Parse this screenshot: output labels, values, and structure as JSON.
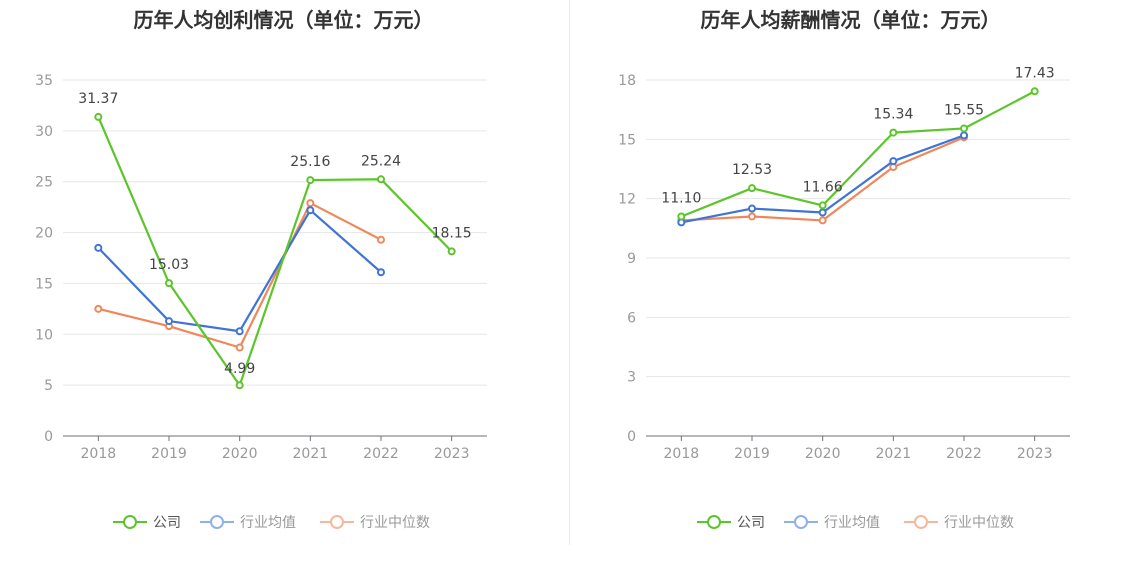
{
  "legend": [
    {
      "label": "公司",
      "color": "#5bc52a",
      "dim": false
    },
    {
      "label": "行业均值",
      "color": "#3e74d6",
      "dim": true
    },
    {
      "label": "行业中位数",
      "color": "#f0875a",
      "dim": true
    }
  ],
  "chart_data": [
    {
      "type": "line",
      "title": "历年人均创利情况（单位：万元）",
      "categories": [
        "2018",
        "2019",
        "2020",
        "2021",
        "2022",
        "2023"
      ],
      "ylim": [
        0,
        35
      ],
      "yticks": [
        0,
        5,
        10,
        15,
        20,
        25,
        30,
        35
      ],
      "grid": true,
      "legend_position": "bottom",
      "series": [
        {
          "name": "公司",
          "color": "#5bc52a",
          "values": [
            31.37,
            15.03,
            4.99,
            25.16,
            25.24,
            18.15
          ],
          "labels": [
            "31.37",
            "15.03",
            "4.99",
            "25.16",
            "25.24",
            "18.15"
          ]
        },
        {
          "name": "行业均值",
          "color": "#3e74d6",
          "values": [
            18.5,
            11.3,
            10.3,
            22.2,
            16.1,
            null
          ]
        },
        {
          "name": "行业中位数",
          "color": "#f0875a",
          "values": [
            12.5,
            10.8,
            8.7,
            22.9,
            19.3,
            null
          ]
        }
      ]
    },
    {
      "type": "line",
      "title": "历年人均薪酬情况（单位：万元）",
      "categories": [
        "2018",
        "2019",
        "2020",
        "2021",
        "2022",
        "2023"
      ],
      "ylim": [
        0,
        18
      ],
      "yticks": [
        0,
        3,
        6,
        9,
        12,
        15,
        18
      ],
      "grid": true,
      "legend_position": "bottom",
      "series": [
        {
          "name": "公司",
          "color": "#5bc52a",
          "values": [
            11.1,
            12.53,
            11.66,
            15.34,
            15.55,
            17.43
          ],
          "labels": [
            "11.10",
            "12.53",
            "11.66",
            "15.34",
            "15.55",
            "17.43"
          ]
        },
        {
          "name": "行业均值",
          "color": "#3e74d6",
          "values": [
            10.8,
            11.5,
            11.3,
            13.9,
            15.2,
            null
          ]
        },
        {
          "name": "行业中位数",
          "color": "#f0875a",
          "values": [
            10.9,
            11.1,
            10.9,
            13.6,
            15.1,
            null
          ]
        }
      ]
    }
  ]
}
